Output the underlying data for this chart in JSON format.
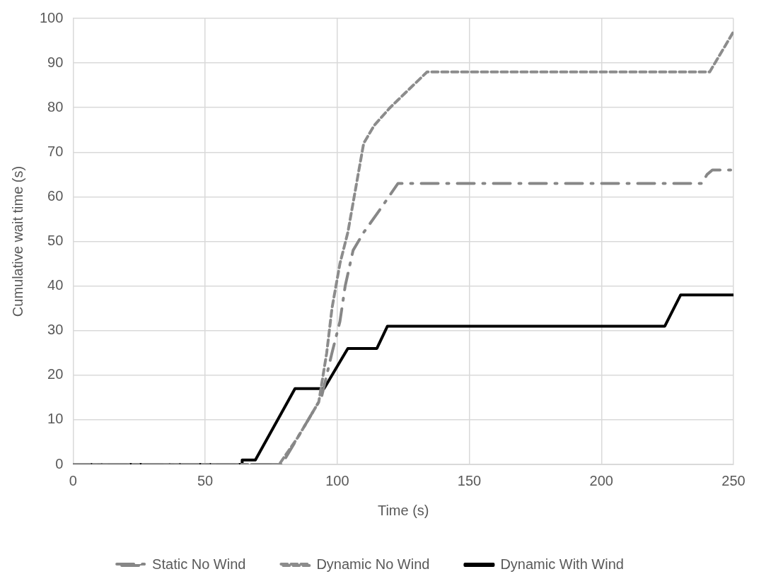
{
  "chart_data": {
    "type": "line",
    "xlabel": "Time (s)",
    "ylabel": "Cumulative wait time (s)",
    "xlim": [
      0,
      250
    ],
    "xticks": [
      0,
      50,
      100,
      150,
      200,
      250
    ],
    "ylim": [
      0,
      100
    ],
    "yticks": [
      0,
      10,
      20,
      30,
      40,
      50,
      60,
      70,
      80,
      90,
      100
    ],
    "grid": true,
    "legend": "bottom",
    "marker": "none",
    "series": [
      {
        "name": "Static No Wind",
        "color": "#878787",
        "line_style": "dashdot",
        "x": [
          0,
          79,
          86,
          94,
          98,
          101,
          103,
          106,
          110,
          116,
          123,
          238,
          240,
          242,
          250
        ],
        "values": [
          0,
          0,
          7,
          15,
          25,
          32,
          40,
          48,
          52,
          57,
          63,
          63,
          65,
          66,
          66
        ]
      },
      {
        "name": "Dynamic No Wind",
        "color": "#8c8c8c",
        "line_style": "dashed",
        "x": [
          0,
          78,
          85,
          93,
          96,
          98,
          101,
          104,
          107,
          110,
          114,
          120,
          134,
          241,
          245,
          250
        ],
        "values": [
          0,
          0,
          6,
          14,
          25,
          35,
          45,
          52,
          62,
          72,
          76,
          80,
          88,
          88,
          92,
          97
        ]
      },
      {
        "name": "Dynamic With Wind",
        "color": "#000000",
        "line_style": "solid",
        "x": [
          0,
          64,
          64,
          69,
          84,
          95,
          104,
          115,
          119,
          224,
          230,
          250
        ],
        "values": [
          0,
          0,
          1,
          1,
          17,
          17,
          26,
          26,
          31,
          31,
          38,
          38
        ]
      }
    ]
  }
}
